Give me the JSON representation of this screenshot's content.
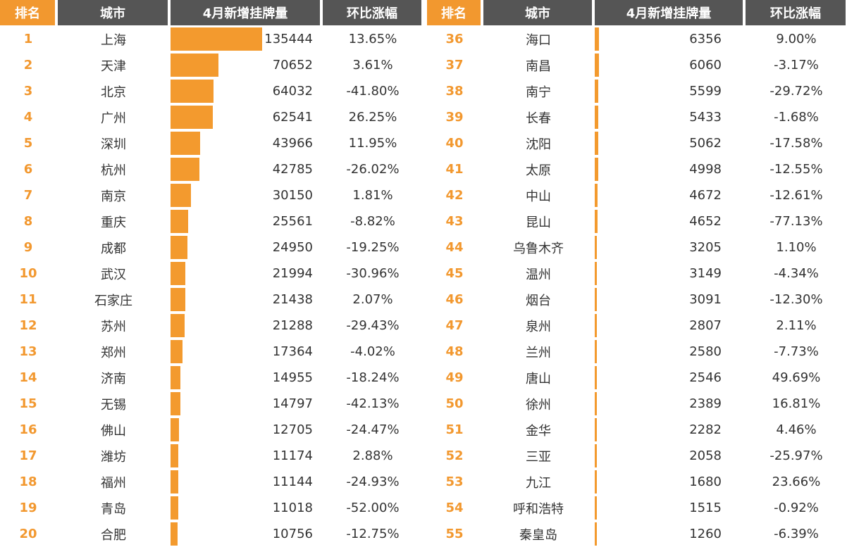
{
  "headers": {
    "rank": "排名",
    "city": "城市",
    "listings": "4月新增挂牌量",
    "change": "环比涨幅"
  },
  "colors": {
    "accent": "#f2982f",
    "header_dark": "#555555",
    "bar": "#f39a2e"
  },
  "chart_data": {
    "type": "table",
    "columns": [
      "排名",
      "城市",
      "4月新增挂牌量",
      "环比涨幅"
    ],
    "left_rows": [
      {
        "rank": "1",
        "city": "上海",
        "value": 135444,
        "change": "13.65%"
      },
      {
        "rank": "2",
        "city": "天津",
        "value": 70652,
        "change": "3.61%"
      },
      {
        "rank": "3",
        "city": "北京",
        "value": 64032,
        "change": "-41.80%"
      },
      {
        "rank": "4",
        "city": "广州",
        "value": 62541,
        "change": "26.25%"
      },
      {
        "rank": "5",
        "city": "深圳",
        "value": 43966,
        "change": "11.95%"
      },
      {
        "rank": "6",
        "city": "杭州",
        "value": 42785,
        "change": "-26.02%"
      },
      {
        "rank": "7",
        "city": "南京",
        "value": 30150,
        "change": "1.81%"
      },
      {
        "rank": "8",
        "city": "重庆",
        "value": 25561,
        "change": "-8.82%"
      },
      {
        "rank": "9",
        "city": "成都",
        "value": 24950,
        "change": "-19.25%"
      },
      {
        "rank": "10",
        "city": "武汉",
        "value": 21994,
        "change": "-30.96%"
      },
      {
        "rank": "11",
        "city": "石家庄",
        "value": 21438,
        "change": "2.07%"
      },
      {
        "rank": "12",
        "city": "苏州",
        "value": 21288,
        "change": "-29.43%"
      },
      {
        "rank": "13",
        "city": "郑州",
        "value": 17364,
        "change": "-4.02%"
      },
      {
        "rank": "14",
        "city": "济南",
        "value": 14955,
        "change": "-18.24%"
      },
      {
        "rank": "15",
        "city": "无锡",
        "value": 14797,
        "change": "-42.13%"
      },
      {
        "rank": "16",
        "city": "佛山",
        "value": 12705,
        "change": "-24.47%"
      },
      {
        "rank": "17",
        "city": "潍坊",
        "value": 11174,
        "change": "2.88%"
      },
      {
        "rank": "18",
        "city": "福州",
        "value": 11144,
        "change": "-24.93%"
      },
      {
        "rank": "19",
        "city": "青岛",
        "value": 11018,
        "change": "-52.00%"
      },
      {
        "rank": "20",
        "city": "合肥",
        "value": 10756,
        "change": "-12.75%"
      }
    ],
    "right_rows": [
      {
        "rank": "36",
        "city": "海口",
        "value": 6356,
        "change": "9.00%"
      },
      {
        "rank": "37",
        "city": "南昌",
        "value": 6060,
        "change": "-3.17%"
      },
      {
        "rank": "38",
        "city": "南宁",
        "value": 5599,
        "change": "-29.72%"
      },
      {
        "rank": "39",
        "city": "长春",
        "value": 5433,
        "change": "-1.68%"
      },
      {
        "rank": "40",
        "city": "沈阳",
        "value": 5062,
        "change": "-17.58%"
      },
      {
        "rank": "41",
        "city": "太原",
        "value": 4998,
        "change": "-12.55%"
      },
      {
        "rank": "42",
        "city": "中山",
        "value": 4672,
        "change": "-12.61%"
      },
      {
        "rank": "43",
        "city": "昆山",
        "value": 4652,
        "change": "-77.13%"
      },
      {
        "rank": "44",
        "city": "乌鲁木齐",
        "value": 3205,
        "change": "1.10%"
      },
      {
        "rank": "45",
        "city": "温州",
        "value": 3149,
        "change": "-4.34%"
      },
      {
        "rank": "46",
        "city": "烟台",
        "value": 3091,
        "change": "-12.30%"
      },
      {
        "rank": "47",
        "city": "泉州",
        "value": 2807,
        "change": "2.11%"
      },
      {
        "rank": "48",
        "city": "兰州",
        "value": 2580,
        "change": "-7.73%"
      },
      {
        "rank": "49",
        "city": "唐山",
        "value": 2546,
        "change": "49.69%"
      },
      {
        "rank": "50",
        "city": "徐州",
        "value": 2389,
        "change": "16.81%"
      },
      {
        "rank": "51",
        "city": "金华",
        "value": 2282,
        "change": "4.46%"
      },
      {
        "rank": "52",
        "city": "三亚",
        "value": 2058,
        "change": "-25.97%"
      },
      {
        "rank": "53",
        "city": "九江",
        "value": 1680,
        "change": "23.66%"
      },
      {
        "rank": "54",
        "city": "呼和浩特",
        "value": 1515,
        "change": "-0.92%"
      },
      {
        "rank": "55",
        "city": "秦皇岛",
        "value": 1260,
        "change": "-6.39%"
      }
    ]
  }
}
